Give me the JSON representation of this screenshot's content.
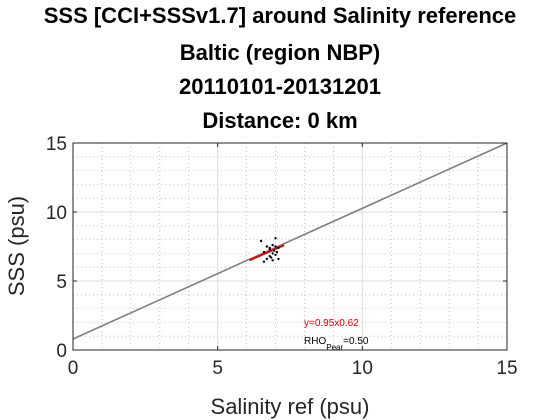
{
  "chart_data": {
    "type": "scatter",
    "title_lines": [
      "SSS [CCI+SSSv1.7] around Salinity reference",
      "Baltic (region NBP)",
      "20110101-20131201",
      "Distance: 0 km"
    ],
    "xlabel": "Salinity ref (psu)",
    "ylabel": "SSS (psu)",
    "xlim": [
      0,
      15
    ],
    "ylim": [
      0,
      15
    ],
    "xticks": [
      "0",
      "5",
      "10",
      "15"
    ],
    "yticks": [
      "0",
      "5",
      "10",
      "15"
    ],
    "grid": true,
    "points": [
      [
        6.6,
        7.1
      ],
      [
        6.7,
        7.5
      ],
      [
        6.8,
        7.4
      ],
      [
        6.9,
        7.6
      ],
      [
        7.0,
        7.5
      ],
      [
        7.1,
        7.4
      ],
      [
        6.9,
        7.0
      ],
      [
        6.8,
        6.8
      ],
      [
        7.0,
        6.9
      ],
      [
        6.7,
        6.6
      ],
      [
        6.9,
        6.5
      ],
      [
        7.1,
        6.6
      ],
      [
        6.6,
        6.4
      ],
      [
        7.0,
        8.1
      ],
      [
        6.5,
        7.9
      ],
      [
        6.8,
        7.3
      ],
      [
        6.95,
        7.2
      ],
      [
        7.05,
        7.1
      ],
      [
        6.85,
        6.7
      ]
    ],
    "identity_line": [
      [
        0,
        0.8
      ],
      [
        15,
        15
      ]
    ],
    "regression_line": [
      [
        6.1,
        6.5
      ],
      [
        7.3,
        7.6
      ]
    ],
    "annotations": {
      "fit_label": "y=0.95x0.62",
      "rho_label": "RHO",
      "rho_subscript": "Pear",
      "rho_value": "=0.50"
    },
    "colors": {
      "regression": "#e00000",
      "identity": "#808080",
      "points": "#000000"
    }
  }
}
